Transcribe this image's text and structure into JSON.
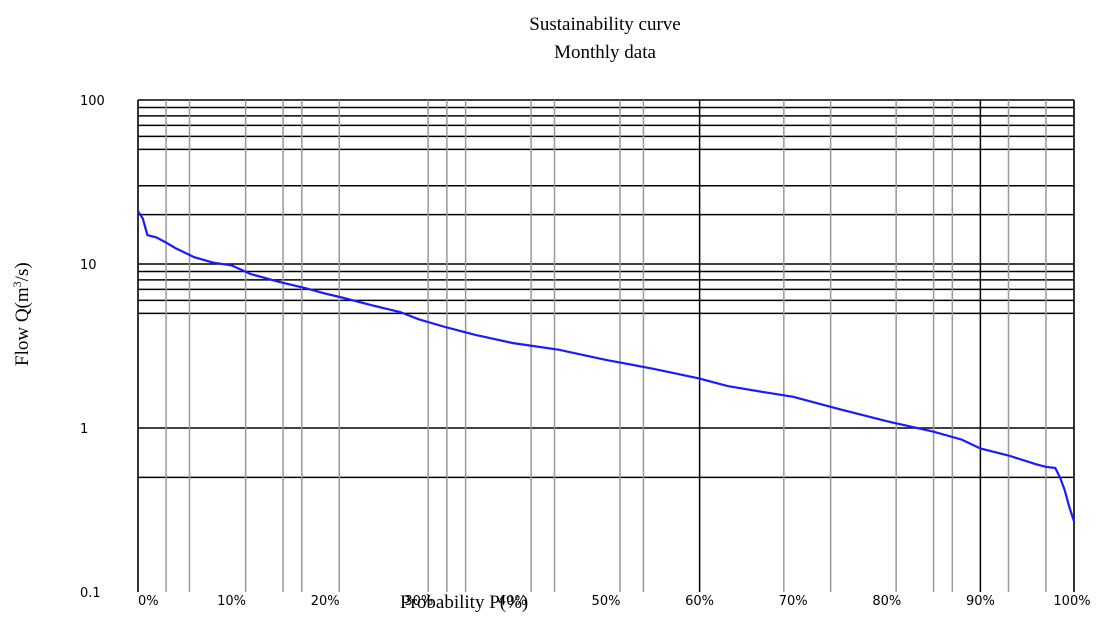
{
  "chart_data": {
    "type": "line",
    "title": "Sustainability curve",
    "subtitle": "Monthly data",
    "xlabel": "Probability P(%)",
    "ylabel_main": "Flow Q(m",
    "ylabel_sup": "3",
    "ylabel_tail": "/s)",
    "y_scale": "log",
    "ylim": [
      0.1,
      100
    ],
    "xlim": [
      0,
      100
    ],
    "x_tick_labels": [
      "0%",
      "10%",
      "20%",
      "30%",
      "40%",
      "50%",
      "60%",
      "70%",
      "80%",
      "90%",
      "100%"
    ],
    "y_tick_labels": [
      "0.1",
      "1",
      "10",
      "100"
    ],
    "grid": true,
    "series": [
      {
        "color": "#1a1aff",
        "x": [
          0,
          0.5,
          1,
          2,
          3,
          4,
          6,
          8,
          10,
          12,
          15,
          18,
          20,
          22,
          25,
          28,
          30,
          33,
          36,
          40,
          45,
          50,
          55,
          60,
          63,
          67,
          70,
          75,
          80,
          85,
          88,
          90,
          93,
          96,
          97,
          98,
          98.5,
          99,
          99.5,
          100
        ],
        "y": [
          21,
          19,
          15,
          14.5,
          13.5,
          12.5,
          11,
          10.2,
          9.8,
          8.7,
          7.8,
          7.1,
          6.6,
          6.2,
          5.6,
          5.1,
          4.6,
          4.1,
          3.7,
          3.3,
          3.0,
          2.6,
          2.3,
          2.0,
          1.8,
          1.65,
          1.55,
          1.3,
          1.1,
          0.95,
          0.85,
          0.75,
          0.68,
          0.6,
          0.58,
          0.57,
          0.5,
          0.42,
          0.33,
          0.27
        ]
      }
    ]
  }
}
